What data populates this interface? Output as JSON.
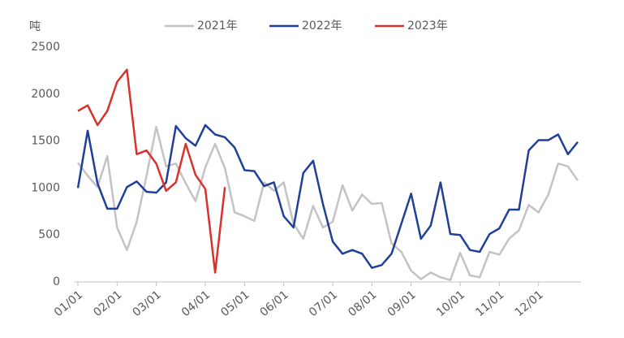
{
  "chart_data": {
    "type": "line",
    "y_unit": "吨",
    "categories": [
      "01/01",
      null,
      null,
      null,
      "02/01",
      null,
      null,
      null,
      "03/01",
      null,
      null,
      null,
      null,
      "04/01",
      null,
      null,
      null,
      "05/01",
      null,
      null,
      null,
      "06/01",
      null,
      null,
      null,
      null,
      "07/01",
      null,
      null,
      null,
      "08/01",
      null,
      null,
      null,
      "09/01",
      null,
      null,
      null,
      null,
      "10/01",
      null,
      null,
      null,
      "11/01",
      null,
      null,
      null,
      "12/01",
      null,
      null,
      null,
      null
    ],
    "series": [
      {
        "name": "2021年",
        "color": "#c3c3c3",
        "values": [
          1270,
          1130,
          1010,
          1340,
          580,
          340,
          640,
          1130,
          1650,
          1230,
          1260,
          1050,
          860,
          1220,
          1470,
          1210,
          740,
          700,
          650,
          1060,
          970,
          1060,
          620,
          460,
          810,
          580,
          640,
          1030,
          760,
          930,
          830,
          840,
          410,
          320,
          120,
          30,
          100,
          50,
          20,
          310,
          70,
          50,
          320,
          290,
          460,
          550,
          820,
          740,
          930,
          1260,
          1230,
          1080
        ]
      },
      {
        "name": "2022年",
        "color": "#1f3f99",
        "values": [
          1000,
          1610,
          1050,
          780,
          780,
          1010,
          1070,
          960,
          950,
          1060,
          1660,
          1530,
          1450,
          1670,
          1570,
          1540,
          1430,
          1190,
          1180,
          1020,
          1060,
          700,
          580,
          1160,
          1290,
          830,
          430,
          300,
          340,
          300,
          150,
          180,
          300,
          620,
          940,
          460,
          600,
          1060,
          510,
          500,
          340,
          320,
          510,
          570,
          770,
          770,
          1400,
          1510,
          1510,
          1570,
          1360,
          1490
        ]
      },
      {
        "name": "2023年",
        "color": "#d9312b",
        "values": [
          1820,
          1880,
          1670,
          1820,
          2130,
          2260,
          1360,
          1400,
          1260,
          970,
          1060,
          1470,
          1140,
          990,
          100,
          1010,
          null,
          null,
          null,
          null,
          null,
          null,
          null,
          null,
          null,
          null,
          null,
          null,
          null,
          null,
          null,
          null,
          null,
          null,
          null,
          null,
          null,
          null,
          null,
          null,
          null,
          null,
          null,
          null,
          null,
          null,
          null,
          null,
          null,
          null,
          null,
          null
        ]
      }
    ],
    "ylim": [
      0,
      2500
    ],
    "yticks": [
      0,
      500,
      1000,
      1500,
      2000,
      2500
    ],
    "grid": false
  }
}
